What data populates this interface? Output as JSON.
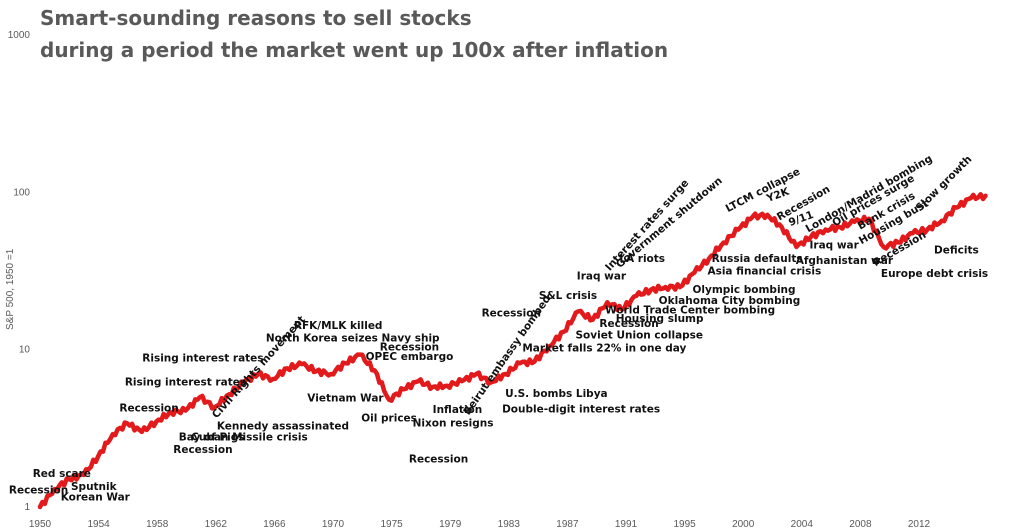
{
  "chart_data": {
    "type": "line",
    "title": [
      "Smart-sounding reasons to sell stocks",
      "during a period the market went up 100x after inflation"
    ],
    "ylabel": "S&P 500, 1950 =1",
    "y_scale": "log",
    "ylim": [
      1,
      1000
    ],
    "y_ticks": [
      1,
      10,
      100,
      1000
    ],
    "x_tick_labels": [
      "1950",
      "1954",
      "1958",
      "1962",
      "1966",
      "1970",
      "1975",
      "1979",
      "1983",
      "1987",
      "1991",
      "1995",
      "2000",
      "2004",
      "2008",
      "2012"
    ],
    "xlim": [
      1950,
      2016
    ],
    "line_color": "#e31a1c",
    "series": [
      {
        "x": [
          1950,
          1951,
          1952,
          1953,
          1954,
          1955,
          1956,
          1957,
          1958,
          1959,
          1960,
          1961,
          1962,
          1963,
          1964,
          1965,
          1966,
          1967,
          1968,
          1969,
          1970,
          1971,
          1972,
          1973,
          1974,
          1975,
          1976,
          1977,
          1978,
          1979,
          1980,
          1981,
          1982,
          1983,
          1984,
          1985,
          1986,
          1987,
          1988,
          1989,
          1990,
          1991,
          1992,
          1993,
          1994,
          1995,
          1996,
          1997,
          1998,
          1999,
          2000,
          2001,
          2002,
          2003,
          2004,
          2005,
          2006,
          2007,
          2008,
          2009,
          2010,
          2011,
          2012,
          2013,
          2014,
          2015
        ],
        "values": [
          1.0,
          1.3,
          1.5,
          1.6,
          2.1,
          2.9,
          3.4,
          3.0,
          3.5,
          4.0,
          4.1,
          5.0,
          4.3,
          5.2,
          6.2,
          7.0,
          6.5,
          7.6,
          8.1,
          7.3,
          7.0,
          8.2,
          9.3,
          7.4,
          4.8,
          5.6,
          6.3,
          5.8,
          5.9,
          6.3,
          7.0,
          6.2,
          7.0,
          8.2,
          8.4,
          10.5,
          13.0,
          17.5,
          15.5,
          20.0,
          18.0,
          22.0,
          24.0,
          25.0,
          25.0,
          31.0,
          38.0,
          48.0,
          58.0,
          70.0,
          72.0,
          60.0,
          45.0,
          52.0,
          58.0,
          60.0,
          65.0,
          68.0,
          45.0,
          48.0,
          55.0,
          58.0,
          66.0,
          80.0,
          92.0,
          95.0
        ]
      }
    ],
    "annotations": [
      {
        "text": "Recession",
        "x": 1949.9,
        "y": 1.22
      },
      {
        "text": "Red scare",
        "x": 1951.5,
        "y": 1.55
      },
      {
        "text": "Sputnik",
        "x": 1953.7,
        "y": 1.28
      },
      {
        "text": "Korean War",
        "x": 1953.8,
        "y": 1.1
      },
      {
        "text": "Recession",
        "x": 1957.5,
        "y": 4.05
      },
      {
        "text": "Rising interest rates",
        "x": 1960.0,
        "y": 5.9
      },
      {
        "text": "Rising interest rates",
        "x": 1961.2,
        "y": 8.4
      },
      {
        "text": "Bay of Pigs",
        "x": 1961.8,
        "y": 2.65
      },
      {
        "text": "Cuban Missile crisis",
        "x": 1964.4,
        "y": 2.65
      },
      {
        "text": "Recession",
        "x": 1961.2,
        "y": 2.2
      },
      {
        "text": "Kennedy assassinated",
        "x": 1966.7,
        "y": 3.1
      },
      {
        "text": "Civil Rights movement",
        "x": 1965.2,
        "y": 7.5,
        "angle": -48
      },
      {
        "text": "RFK/MLK killed",
        "x": 1970.5,
        "y": 13.5
      },
      {
        "text": "North Korea seizes Navy ship",
        "x": 1971.5,
        "y": 11.3
      },
      {
        "text": "Recession",
        "x": 1975.4,
        "y": 9.9
      },
      {
        "text": "OPEC embargo",
        "x": 1975.4,
        "y": 8.6
      },
      {
        "text": "Vietnam War",
        "x": 1971.0,
        "y": 4.7
      },
      {
        "text": "Oil prices",
        "x": 1974.0,
        "y": 3.5
      },
      {
        "text": "Inflation",
        "x": 1978.7,
        "y": 3.95
      },
      {
        "text": "Nixon resigns",
        "x": 1978.4,
        "y": 3.25
      },
      {
        "text": "Recession",
        "x": 1977.4,
        "y": 1.92
      },
      {
        "text": "Recession",
        "x": 1982.4,
        "y": 16.2
      },
      {
        "text": "Beirut embassy bombed",
        "x": 1982.3,
        "y": 9.0,
        "angle": -55
      },
      {
        "text": "Double-digit interest rates",
        "x": 1987.2,
        "y": 4.0
      },
      {
        "text": "U.S. bombs Libya",
        "x": 1985.5,
        "y": 5.0
      },
      {
        "text": "S&L crisis",
        "x": 1986.3,
        "y": 21.0
      },
      {
        "text": "Market falls 22% in one day",
        "x": 1988.8,
        "y": 9.7
      },
      {
        "text": "Iraq war",
        "x": 1988.6,
        "y": 28.0
      },
      {
        "text": "Soviet Union collapse",
        "x": 1991.2,
        "y": 11.8
      },
      {
        "text": "Recession",
        "x": 1990.5,
        "y": 13.9
      },
      {
        "text": "Housing slump",
        "x": 1992.6,
        "y": 15.0
      },
      {
        "text": "World Trade Center bombing",
        "x": 1994.7,
        "y": 17.0
      },
      {
        "text": "Oklahoma City bombing",
        "x": 1997.4,
        "y": 19.5
      },
      {
        "text": "Olympic bombing",
        "x": 1998.4,
        "y": 23.0
      },
      {
        "text": "LA riots",
        "x": 1991.4,
        "y": 36.0
      },
      {
        "text": "Interest rates surge",
        "x": 1991.9,
        "y": 60.0,
        "angle": -48
      },
      {
        "text": "Government shutdown",
        "x": 1993.4,
        "y": 62.0,
        "angle": -40
      },
      {
        "text": "Asia financial crisis",
        "x": 1999.8,
        "y": 30.0
      },
      {
        "text": "Russia defaults",
        "x": 1999.3,
        "y": 36.0
      },
      {
        "text": "LTCM collapse",
        "x": 1999.8,
        "y": 99.0,
        "angle": -28
      },
      {
        "text": "Y2K",
        "x": 2000.8,
        "y": 92.0,
        "angle": -20
      },
      {
        "text": "Recession",
        "x": 2002.6,
        "y": 82.0,
        "angle": -30
      },
      {
        "text": "9/11",
        "x": 2002.4,
        "y": 65.0,
        "angle": -20
      },
      {
        "text": "Iraq war",
        "x": 2004.6,
        "y": 44.0
      },
      {
        "text": "Afghanistan war",
        "x": 2005.3,
        "y": 35.0
      },
      {
        "text": "London/Madrid bombing",
        "x": 2007.1,
        "y": 94.0,
        "angle": -30
      },
      {
        "text": "Oil prices surge",
        "x": 2007.4,
        "y": 85.0,
        "angle": -30
      },
      {
        "text": "Bank crisis",
        "x": 2008.3,
        "y": 73.0,
        "angle": -30
      },
      {
        "text": "Housing bust",
        "x": 2008.8,
        "y": 62.0,
        "angle": -30
      },
      {
        "text": "Recession",
        "x": 2009.2,
        "y": 42.0,
        "angle": -30
      },
      {
        "text": "Europe debt crisis",
        "x": 2011.5,
        "y": 29.0
      },
      {
        "text": "Deficits",
        "x": 2013.0,
        "y": 41.0
      },
      {
        "text": "Slow growth",
        "x": 2012.3,
        "y": 110.0,
        "angle": -45
      }
    ]
  }
}
